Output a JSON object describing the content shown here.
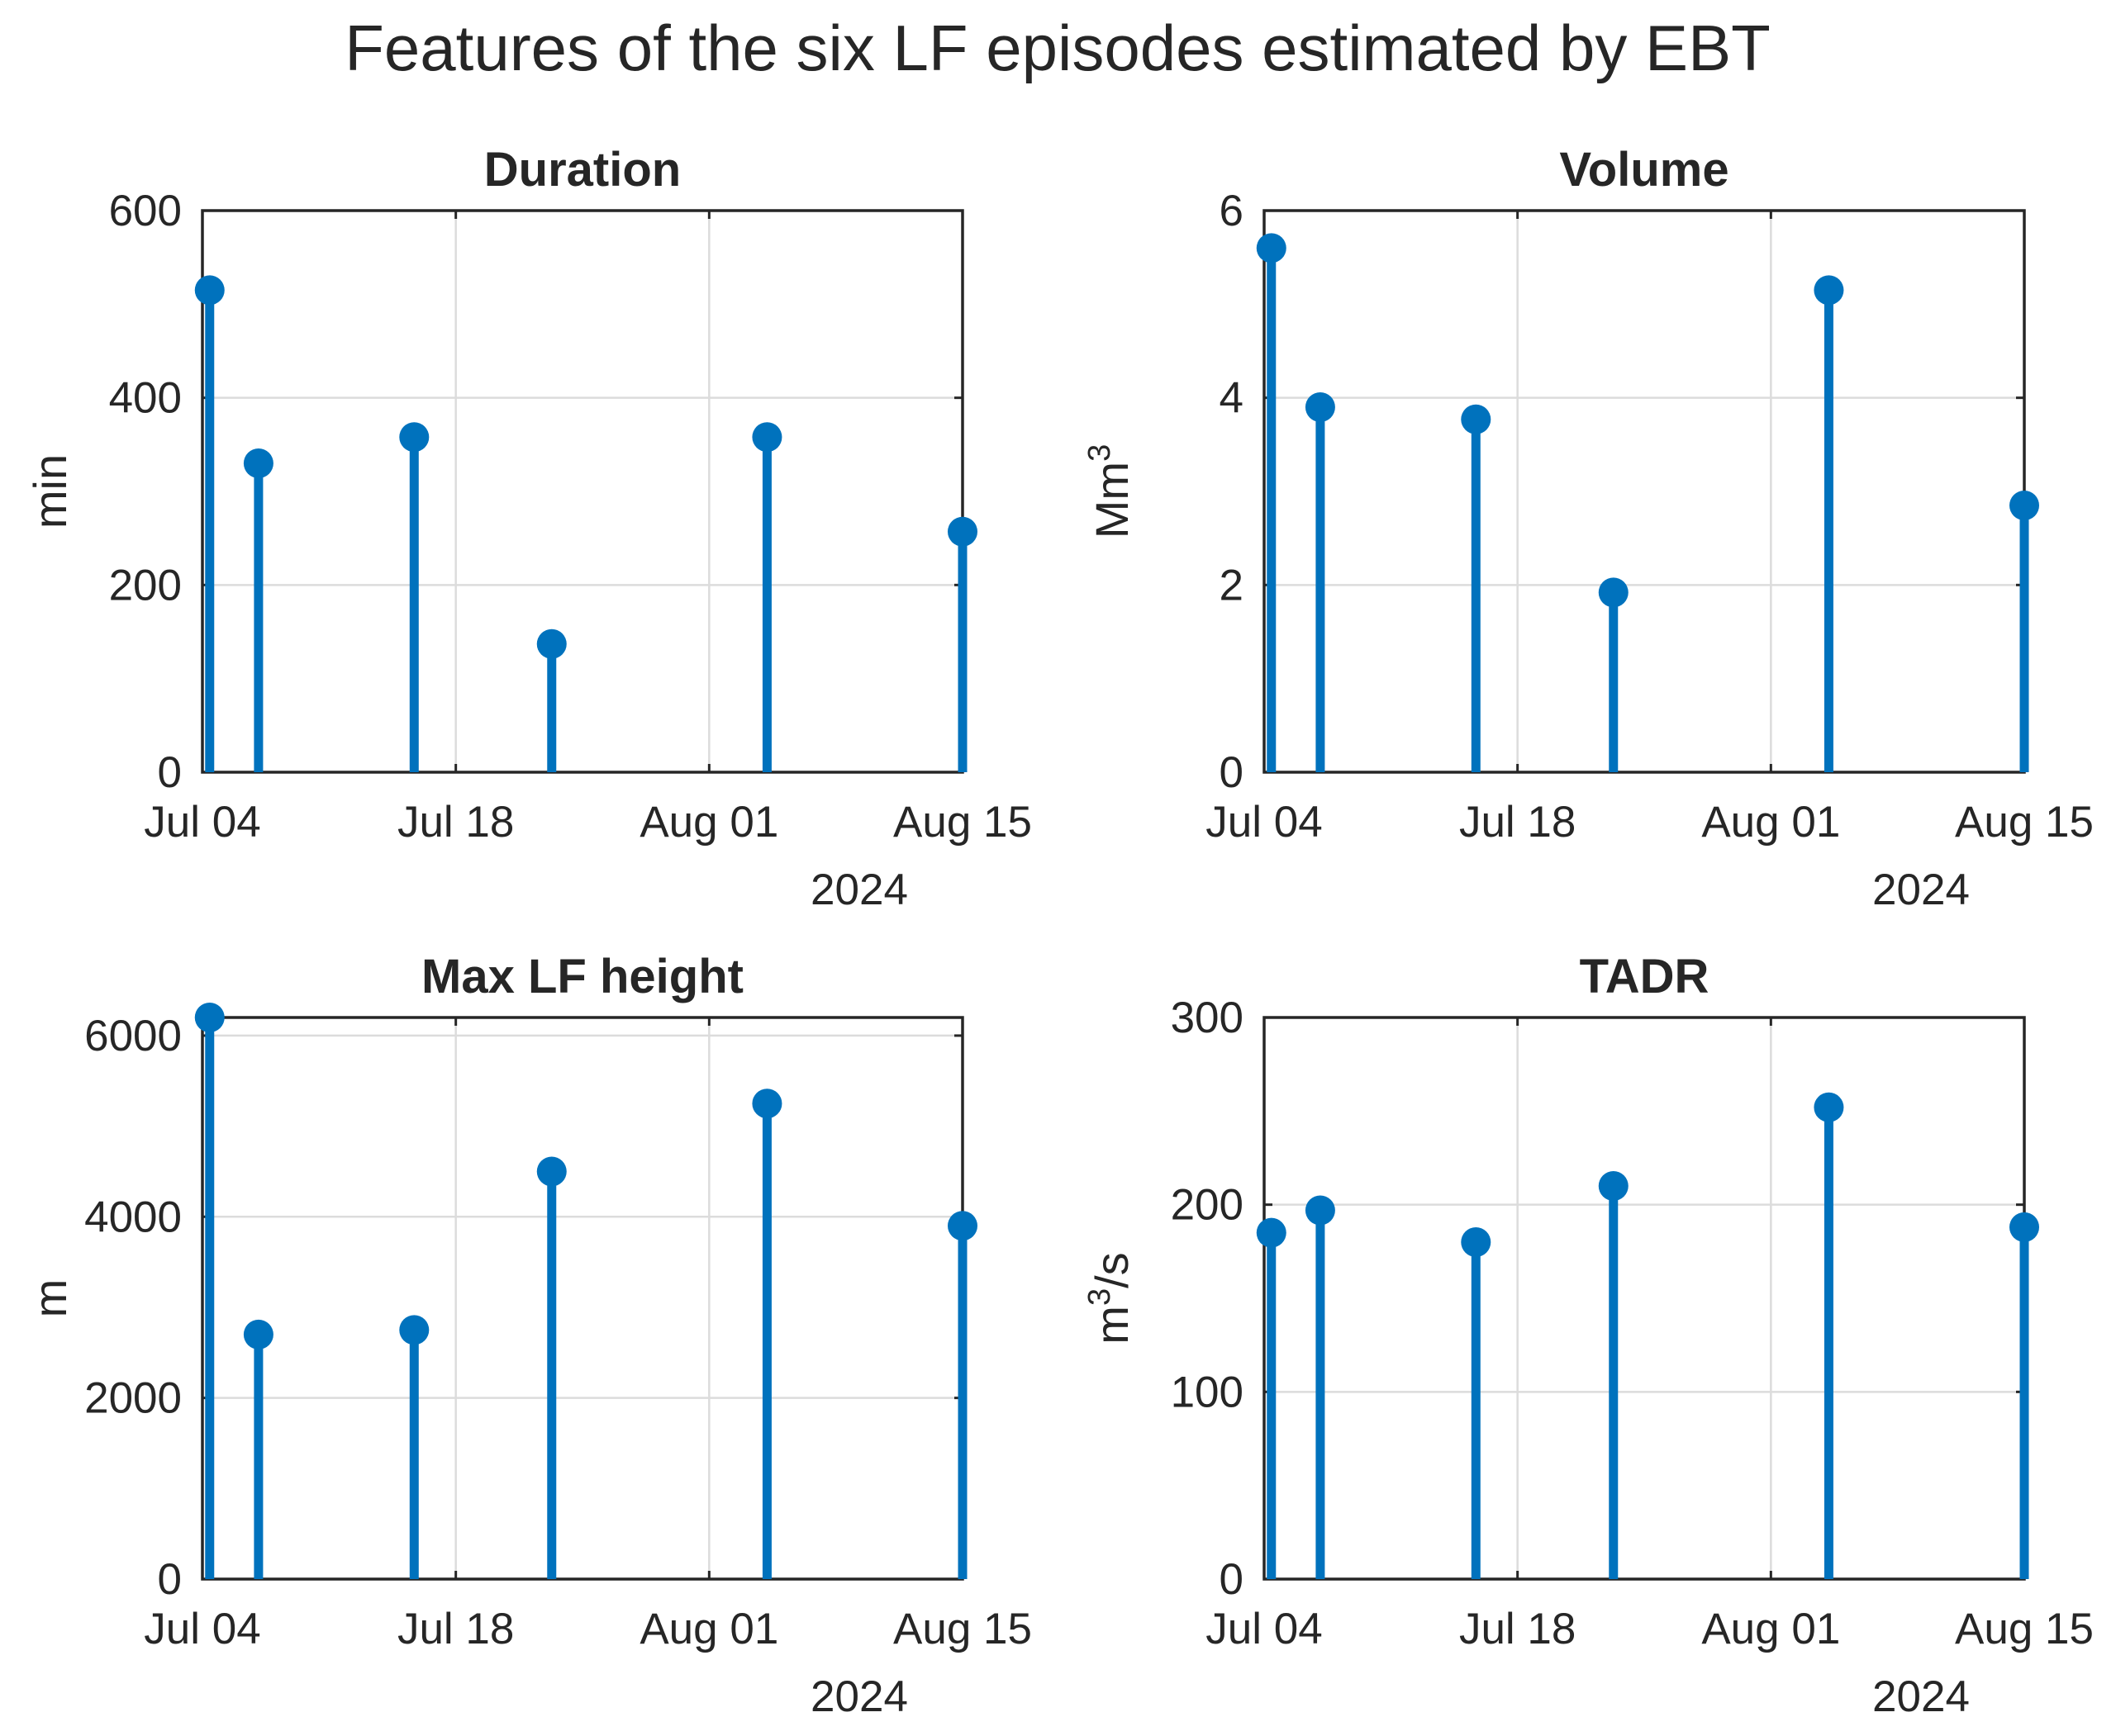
{
  "figure": {
    "title": "Features of the six LF episodes estimated by EBT",
    "colors": {
      "stem": "#0072BD",
      "axis": "#262626",
      "grid": "#dcdcdc"
    }
  },
  "chart_data": [
    {
      "type": "stem",
      "title": "Duration",
      "ylabel": "min",
      "ylabel_sup": "",
      "ylim": [
        0,
        600
      ],
      "yticks": [
        "0",
        "200",
        "400",
        "600"
      ],
      "xlim_days": [
        0,
        42
      ],
      "xticks": [
        "Jul 04",
        "Jul 18",
        "Aug 01",
        "Aug 15"
      ],
      "year": "2024",
      "x": [
        0.4,
        3.1,
        11.7,
        19.3,
        31.2,
        42.0
      ],
      "values": [
        515,
        330,
        358,
        137,
        358,
        257
      ]
    },
    {
      "type": "stem",
      "title": "Volume",
      "ylabel": "Mm",
      "ylabel_sup": "3",
      "ylim": [
        0,
        6
      ],
      "yticks": [
        "0",
        "2",
        "4",
        "6"
      ],
      "xlim_days": [
        0,
        42
      ],
      "xticks": [
        "Jul 04",
        "Jul 18",
        "Aug 01",
        "Aug 15"
      ],
      "year": "2024",
      "x": [
        0.4,
        3.1,
        11.7,
        19.3,
        31.2,
        42.0
      ],
      "values": [
        5.6,
        3.9,
        3.77,
        1.92,
        5.15,
        2.85
      ]
    },
    {
      "type": "stem",
      "title": "Max LF height",
      "ylabel": "m",
      "ylabel_sup": "",
      "ylim": [
        0,
        6200
      ],
      "yticks": [
        "0",
        "2000",
        "4000",
        "6000"
      ],
      "xlim_days": [
        0,
        42
      ],
      "xticks": [
        "Jul 04",
        "Jul 18",
        "Aug 01",
        "Aug 15"
      ],
      "year": "2024",
      "x": [
        0.4,
        3.1,
        11.7,
        19.3,
        31.2,
        42.0
      ],
      "values": [
        6200,
        2700,
        2750,
        4500,
        5250,
        3900
      ]
    },
    {
      "type": "stem",
      "title": "TADR",
      "ylabel": "m",
      "ylabel_sup": "3",
      "ylabel_suffix": "/s",
      "ylim": [
        0,
        300
      ],
      "yticks": [
        "0",
        "100",
        "200",
        "300"
      ],
      "xlim_days": [
        0,
        42
      ],
      "xticks": [
        "Jul 04",
        "Jul 18",
        "Aug 01",
        "Aug 15"
      ],
      "year": "2024",
      "x": [
        0.4,
        3.1,
        11.7,
        19.3,
        31.2,
        42.0
      ],
      "values": [
        185,
        197,
        180,
        210,
        252,
        188
      ]
    }
  ]
}
